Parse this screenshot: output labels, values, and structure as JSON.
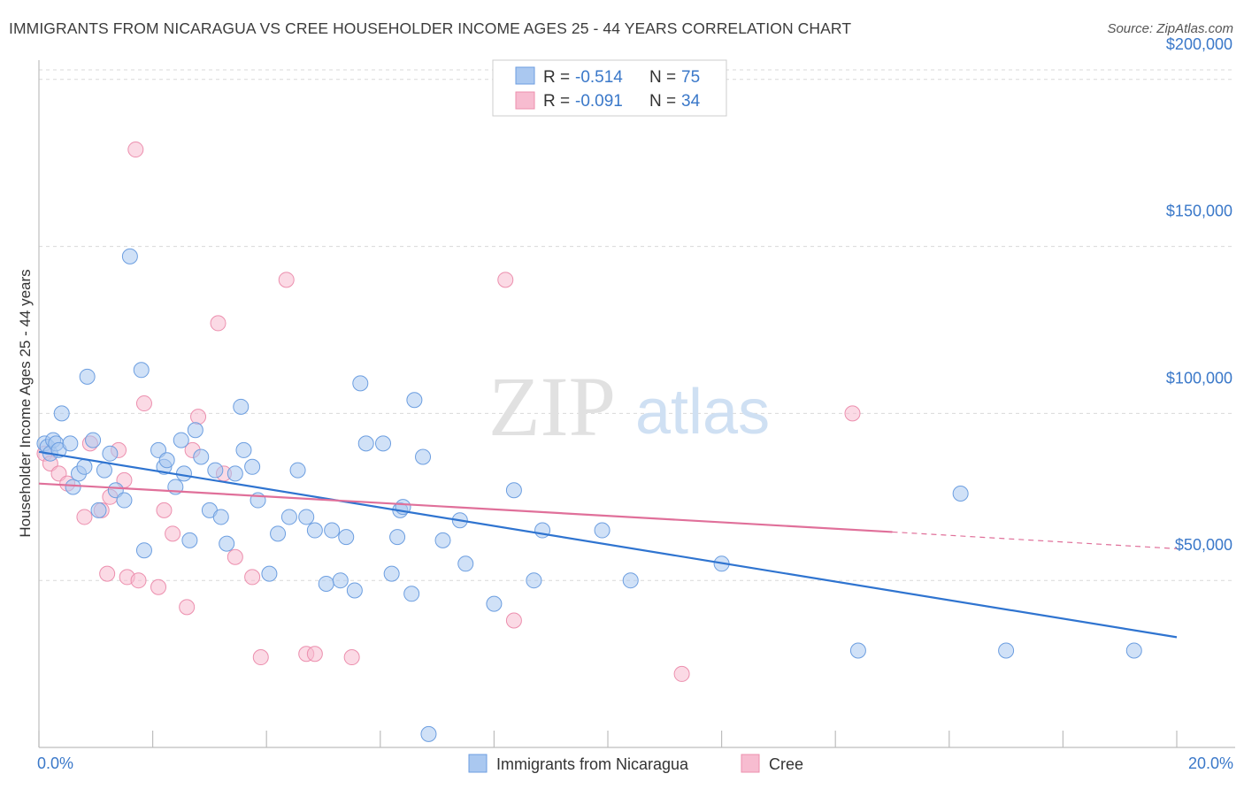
{
  "title": "IMMIGRANTS FROM NICARAGUA VS CREE HOUSEHOLDER INCOME AGES 25 - 44 YEARS CORRELATION CHART",
  "source": "Source: ZipAtlas.com",
  "watermark": {
    "zip": "ZIP",
    "atlas": "atlas"
  },
  "colors": {
    "blue_fill": "#aac8f0",
    "blue_stroke": "#6c9ee0",
    "blue_line": "#2f74d0",
    "pink_fill": "#f7bcd0",
    "pink_stroke": "#ec8fae",
    "pink_line": "#e0709a",
    "accent_text": "#3a78c9",
    "grid": "#d9d9d9"
  },
  "legend": {
    "rows": [
      {
        "r_label": "R =",
        "r_value": "-0.514",
        "n_label": "N =",
        "n_value": "75",
        "color": "blue"
      },
      {
        "r_label": "R =",
        "r_value": "-0.091",
        "n_label": "N =",
        "n_value": "34",
        "color": "pink"
      }
    ]
  },
  "bottom_legend": [
    {
      "label": "Immigrants from Nicaragua",
      "color": "blue"
    },
    {
      "label": "Cree",
      "color": "pink"
    }
  ],
  "chart_data": {
    "type": "scatter",
    "title": "IMMIGRANTS FROM NICARAGUA VS CREE HOUSEHOLDER INCOME AGES 25 - 44 YEARS CORRELATION CHART",
    "xlabel": "",
    "ylabel": "Householder Income Ages 25 - 44 years",
    "xlim": [
      0,
      20
    ],
    "ylim": [
      0,
      210000
    ],
    "x_tick_labels": [
      "0.0%",
      "20.0%"
    ],
    "y_ticks": [
      50000,
      100000,
      150000,
      200000
    ],
    "y_tick_labels": [
      "$50,000",
      "$100,000",
      "$150,000",
      "$200,000"
    ],
    "grid": true,
    "legend_position": "top-center",
    "series": [
      {
        "name": "Immigrants from Nicaragua",
        "r": -0.514,
        "n": 75,
        "trend": {
          "x": [
            0.0,
            20.0
          ],
          "y": [
            88500,
            33000
          ]
        },
        "x": [
          0.1,
          0.15,
          0.2,
          0.25,
          0.3,
          0.35,
          0.4,
          0.55,
          0.6,
          0.7,
          0.8,
          0.85,
          0.95,
          1.05,
          1.15,
          1.25,
          1.35,
          1.5,
          1.6,
          1.8,
          1.85,
          2.1,
          2.2,
          2.25,
          2.4,
          2.5,
          2.55,
          2.65,
          2.75,
          2.85,
          3.0,
          3.1,
          3.2,
          3.3,
          3.45,
          3.55,
          3.6,
          3.75,
          3.85,
          4.05,
          4.2,
          4.4,
          4.55,
          4.7,
          4.85,
          5.05,
          5.15,
          5.3,
          5.4,
          5.55,
          5.65,
          5.75,
          6.05,
          6.2,
          6.3,
          6.35,
          6.4,
          6.55,
          6.6,
          6.75,
          6.85,
          7.1,
          7.4,
          7.5,
          8.0,
          8.35,
          8.7,
          8.85,
          9.9,
          10.4,
          12.0,
          14.4,
          16.2,
          17.0,
          19.25
        ],
        "y": [
          91000,
          90000,
          88000,
          92000,
          91000,
          89000,
          100000,
          91000,
          78000,
          82000,
          84000,
          111000,
          92000,
          71000,
          83000,
          88000,
          77000,
          74000,
          147000,
          113000,
          59000,
          89000,
          84000,
          86000,
          78000,
          92000,
          82000,
          62000,
          95000,
          87000,
          71000,
          83000,
          69000,
          61000,
          82000,
          102000,
          89000,
          84000,
          74000,
          52000,
          64000,
          69000,
          83000,
          69000,
          65000,
          49000,
          65000,
          50000,
          63000,
          47000,
          109000,
          91000,
          91000,
          52000,
          63000,
          71000,
          72000,
          46000,
          104000,
          87000,
          4000,
          62000,
          68000,
          55000,
          43000,
          77000,
          50000,
          65000,
          65000,
          50000,
          55000,
          29000,
          76000,
          29000,
          29000
        ]
      },
      {
        "name": "Cree",
        "r": -0.091,
        "n": 34,
        "trend": {
          "x": [
            0.0,
            15.0
          ],
          "y": [
            79000,
            64500
          ]
        },
        "trend_dashed": {
          "x": [
            15.0,
            20.0
          ],
          "y": [
            64500,
            59500
          ]
        },
        "x": [
          0.1,
          0.2,
          0.35,
          0.5,
          0.8,
          0.9,
          1.1,
          1.2,
          1.25,
          1.4,
          1.5,
          1.55,
          1.7,
          1.75,
          1.85,
          2.1,
          2.2,
          2.35,
          2.6,
          2.7,
          2.8,
          3.15,
          3.25,
          3.45,
          3.75,
          3.9,
          4.35,
          4.7,
          4.85,
          5.5,
          8.2,
          8.35,
          11.3,
          14.3
        ],
        "y": [
          88000,
          85000,
          82000,
          79000,
          69000,
          91000,
          71000,
          52000,
          75000,
          89000,
          80000,
          51000,
          179000,
          50000,
          103000,
          48000,
          71000,
          64000,
          42000,
          89000,
          99000,
          127000,
          82000,
          57000,
          51000,
          27000,
          140000,
          28000,
          28000,
          27000,
          140000,
          38000,
          22000,
          100000
        ]
      }
    ]
  }
}
